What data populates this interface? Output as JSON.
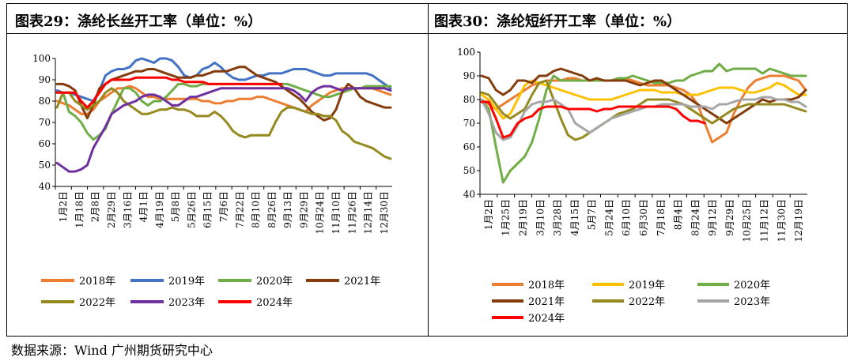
{
  "source": "数据来源：Wind  广州期货研究中心",
  "chart_data": [
    {
      "type": "line",
      "title": "图表29：涤纶长丝开工率（单位：%）",
      "ylim": [
        40,
        100
      ],
      "yticks": [
        40,
        50,
        60,
        70,
        80,
        90,
        100
      ],
      "xticks": [
        "1月2日",
        "1月18日",
        "2月8日",
        "2月29日",
        "3月16日",
        "4月1日",
        "4月19日",
        "5月8日",
        "5月26日",
        "6月15日",
        "7月6日",
        "7月22日",
        "8月10日",
        "8月26日",
        "9月13日",
        "9月29日",
        "10月24日",
        "11月10日",
        "11月26日",
        "12月14日",
        "12月30日"
      ],
      "legend_position": "bottom",
      "grid": false,
      "series": [
        {
          "name": "2018年",
          "color": "#ed7d31",
          "values": [
            80,
            79,
            78,
            76,
            74,
            74,
            76,
            80,
            82,
            84,
            86,
            86,
            87,
            86,
            84,
            82,
            82,
            81,
            81,
            81,
            81,
            81,
            81,
            81,
            80,
            80,
            79,
            79,
            80,
            80,
            81,
            81,
            81,
            82,
            82,
            81,
            80,
            79,
            78,
            77,
            76,
            75,
            78,
            80,
            82,
            84,
            85,
            86,
            86,
            86,
            86,
            86,
            86,
            85,
            84,
            83
          ]
        },
        {
          "name": "2019年",
          "color": "#4472c4",
          "values": [
            85,
            84,
            84,
            83,
            82,
            81,
            80,
            85,
            92,
            94,
            95,
            95,
            96,
            99,
            100,
            99,
            98,
            100,
            100,
            99,
            96,
            92,
            91,
            92,
            95,
            96,
            98,
            96,
            93,
            91,
            90,
            90,
            91,
            92,
            92,
            93,
            93,
            93,
            94,
            95,
            95,
            95,
            94,
            93,
            92,
            92,
            93,
            93,
            93,
            93,
            93,
            93,
            92,
            90,
            88,
            86
          ]
        },
        {
          "name": "2020年",
          "color": "#70ad47",
          "values": [
            84,
            84,
            75,
            73,
            70,
            65,
            62,
            64,
            67,
            74,
            80,
            86,
            86,
            84,
            80,
            78,
            80,
            80,
            82,
            85,
            88,
            88,
            87,
            87,
            88,
            88,
            88,
            88,
            88,
            88,
            88,
            88,
            88,
            88,
            88,
            88,
            88,
            88,
            88,
            87,
            86,
            85,
            84,
            83,
            82,
            82,
            83,
            84,
            85,
            86,
            86,
            87,
            87,
            87,
            87,
            87
          ]
        },
        {
          "name": "2021年",
          "color": "#843c0c",
          "values": [
            88,
            88,
            87,
            85,
            78,
            72,
            78,
            86,
            88,
            90,
            91,
            92,
            93,
            94,
            94,
            95,
            95,
            94,
            93,
            92,
            91,
            91,
            91,
            92,
            92,
            93,
            94,
            94,
            94,
            95,
            96,
            96,
            94,
            92,
            91,
            90,
            89,
            87,
            85,
            83,
            81,
            78,
            75,
            73,
            71,
            72,
            76,
            84,
            88,
            86,
            82,
            80,
            79,
            78,
            77,
            77
          ]
        },
        {
          "name": "2022年",
          "color": "#948a1f",
          "values": [
            77,
            84,
            84,
            80,
            78,
            76,
            78,
            80,
            84,
            86,
            84,
            80,
            78,
            76,
            74,
            74,
            75,
            76,
            76,
            77,
            76,
            76,
            75,
            73,
            73,
            73,
            75,
            73,
            70,
            66,
            64,
            63,
            64,
            64,
            64,
            64,
            70,
            75,
            77,
            77,
            76,
            75,
            74,
            74,
            73,
            73,
            71,
            66,
            64,
            61,
            60,
            59,
            58,
            56,
            54,
            53
          ]
        },
        {
          "name": "2023年",
          "color": "#7030a0",
          "values": [
            51,
            49,
            47,
            47,
            48,
            50,
            58,
            63,
            68,
            74,
            76,
            78,
            79,
            80,
            82,
            83,
            83,
            82,
            80,
            78,
            78,
            80,
            82,
            82,
            83,
            84,
            85,
            86,
            86,
            86,
            86,
            86,
            86,
            86,
            86,
            86,
            86,
            86,
            86,
            85,
            83,
            80,
            84,
            86,
            87,
            87,
            86,
            85,
            86,
            86,
            86,
            86,
            86,
            86,
            86,
            85
          ]
        },
        {
          "name": "2024年",
          "color": "#ff0000",
          "values": [
            84,
            84,
            84,
            84,
            80,
            77,
            80,
            84,
            88,
            90,
            90,
            90,
            90,
            91,
            91,
            91,
            91,
            91,
            91,
            90,
            90,
            89,
            89,
            89,
            89,
            88,
            88,
            88,
            88,
            88,
            88,
            88,
            88,
            88,
            88,
            88,
            88,
            88
          ]
        }
      ]
    },
    {
      "type": "line",
      "title": "图表30：涤纶短纤开工率（单位：%）",
      "ylim": [
        40,
        100
      ],
      "yticks": [
        40,
        50,
        60,
        70,
        80,
        90,
        100
      ],
      "xticks": [
        "1月2日",
        "1月25日",
        "2月19日",
        "3月10日",
        "3月28日",
        "4月15日",
        "5月7日",
        "5月24日",
        "6月10日",
        "6月30日",
        "7月18日",
        "8月4日",
        "8月24日",
        "9月12日",
        "9月29日",
        "10月25日",
        "11月12日",
        "11月30日",
        "12月19日"
      ],
      "legend_position": "bottom",
      "grid": false,
      "series": [
        {
          "name": "2018年",
          "color": "#ed7d31",
          "values": [
            80,
            78,
            76,
            78,
            80,
            82,
            84,
            86,
            87,
            88,
            88,
            88,
            89,
            89,
            88,
            88,
            88,
            88,
            88,
            89,
            89,
            88,
            87,
            86,
            86,
            86,
            86,
            85,
            84,
            82,
            78,
            70,
            62,
            64,
            66,
            74,
            80,
            85,
            88,
            89,
            90,
            90,
            90,
            89,
            88,
            84
          ]
        },
        {
          "name": "2019年",
          "color": "#ffc000",
          "values": [
            82,
            80,
            76,
            72,
            74,
            80,
            86,
            88,
            87,
            86,
            85,
            84,
            83,
            82,
            81,
            80,
            80,
            80,
            80,
            81,
            82,
            83,
            84,
            84,
            84,
            83,
            83,
            83,
            82,
            82,
            82,
            83,
            84,
            85,
            85,
            85,
            84,
            83,
            83,
            84,
            85,
            87,
            86,
            84,
            82,
            82
          ]
        },
        {
          "name": "2020年",
          "color": "#70ad47",
          "values": [
            80,
            76,
            60,
            45,
            50,
            53,
            56,
            62,
            72,
            84,
            90,
            88,
            88,
            88,
            88,
            88,
            88,
            88,
            88,
            89,
            89,
            90,
            89,
            88,
            87,
            87,
            87,
            88,
            88,
            90,
            91,
            92,
            92,
            95,
            92,
            93,
            93,
            93,
            93,
            91,
            93,
            92,
            91,
            90,
            90,
            90
          ]
        },
        {
          "name": "2021年",
          "color": "#843c0c",
          "values": [
            90,
            89,
            84,
            82,
            84,
            88,
            88,
            87,
            90,
            90,
            92,
            93,
            92,
            91,
            90,
            88,
            89,
            88,
            88,
            88,
            88,
            87,
            86,
            87,
            88,
            88,
            86,
            84,
            82,
            80,
            78,
            76,
            74,
            72,
            70,
            72,
            74,
            76,
            78,
            80,
            79,
            80,
            80,
            80,
            81,
            84
          ]
        },
        {
          "name": "2022年",
          "color": "#948a1f",
          "values": [
            83,
            82,
            78,
            74,
            72,
            74,
            76,
            82,
            87,
            88,
            80,
            72,
            65,
            63,
            64,
            66,
            68,
            70,
            72,
            74,
            75,
            76,
            78,
            80,
            80,
            80,
            80,
            79,
            78,
            76,
            74,
            72,
            70,
            72,
            74,
            76,
            77,
            78,
            78,
            78,
            78,
            78,
            78,
            77,
            76,
            75
          ]
        },
        {
          "name": "2023年",
          "color": "#a6a6a6",
          "values": [
            80,
            74,
            66,
            63,
            64,
            69,
            75,
            78,
            79,
            79,
            80,
            78,
            76,
            70,
            68,
            66,
            68,
            70,
            72,
            73,
            74,
            75,
            76,
            77,
            77,
            78,
            78,
            78,
            78,
            77,
            77,
            77,
            76,
            78,
            78,
            79,
            80,
            80,
            80,
            81,
            81,
            80,
            80,
            79,
            79,
            77
          ]
        },
        {
          "name": "2024年",
          "color": "#ff0000",
          "values": [
            79,
            79,
            72,
            64,
            65,
            70,
            72,
            73,
            76,
            77,
            77,
            77,
            76,
            76,
            76,
            76,
            75,
            76,
            76,
            77,
            77,
            77,
            77,
            77,
            77,
            77,
            77,
            76,
            73,
            71,
            71,
            70
          ]
        }
      ]
    }
  ]
}
